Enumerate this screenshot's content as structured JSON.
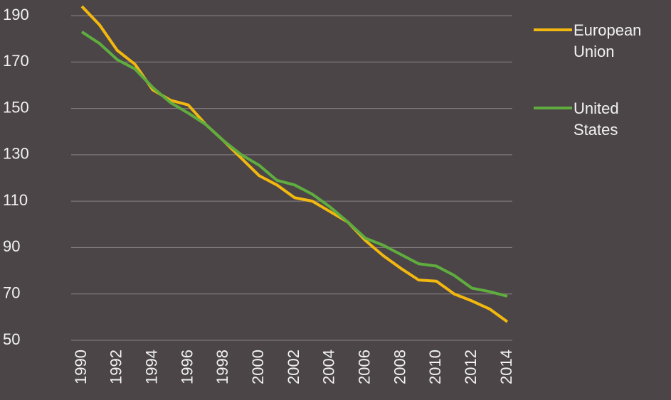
{
  "chart_data": {
    "type": "line",
    "x": [
      1990,
      1991,
      1992,
      1993,
      1994,
      1995,
      1996,
      1997,
      1998,
      1999,
      2000,
      2001,
      2002,
      2003,
      2004,
      2005,
      2006,
      2007,
      2008,
      2009,
      2010,
      2011,
      2012,
      2013,
      2014
    ],
    "series": [
      {
        "name": "European Union",
        "color": "#f2b80f",
        "values": [
          194,
          186,
          175,
          169,
          158,
          153.5,
          151.5,
          143,
          136,
          128.5,
          121,
          117,
          111.5,
          110,
          105.5,
          101,
          93,
          86.5,
          81,
          76,
          75.5,
          70,
          67,
          63.5,
          58
        ]
      },
      {
        "name": "United States",
        "color": "#5fad3e",
        "values": [
          183,
          178,
          171,
          167,
          159,
          152.5,
          148,
          143,
          136,
          130,
          125.5,
          119,
          117,
          113,
          107.5,
          101,
          94,
          91,
          87,
          83,
          82,
          78,
          72.5,
          71,
          69
        ]
      }
    ],
    "xlim": [
      1990,
      2014
    ],
    "xticks": [
      1990,
      1992,
      1994,
      1996,
      1998,
      2000,
      2002,
      2004,
      2006,
      2008,
      2010,
      2012,
      2014
    ],
    "ylim": [
      50,
      190
    ],
    "yticks": [
      50,
      70,
      90,
      110,
      130,
      150,
      170,
      190
    ],
    "grid": true,
    "legend": "right"
  }
}
